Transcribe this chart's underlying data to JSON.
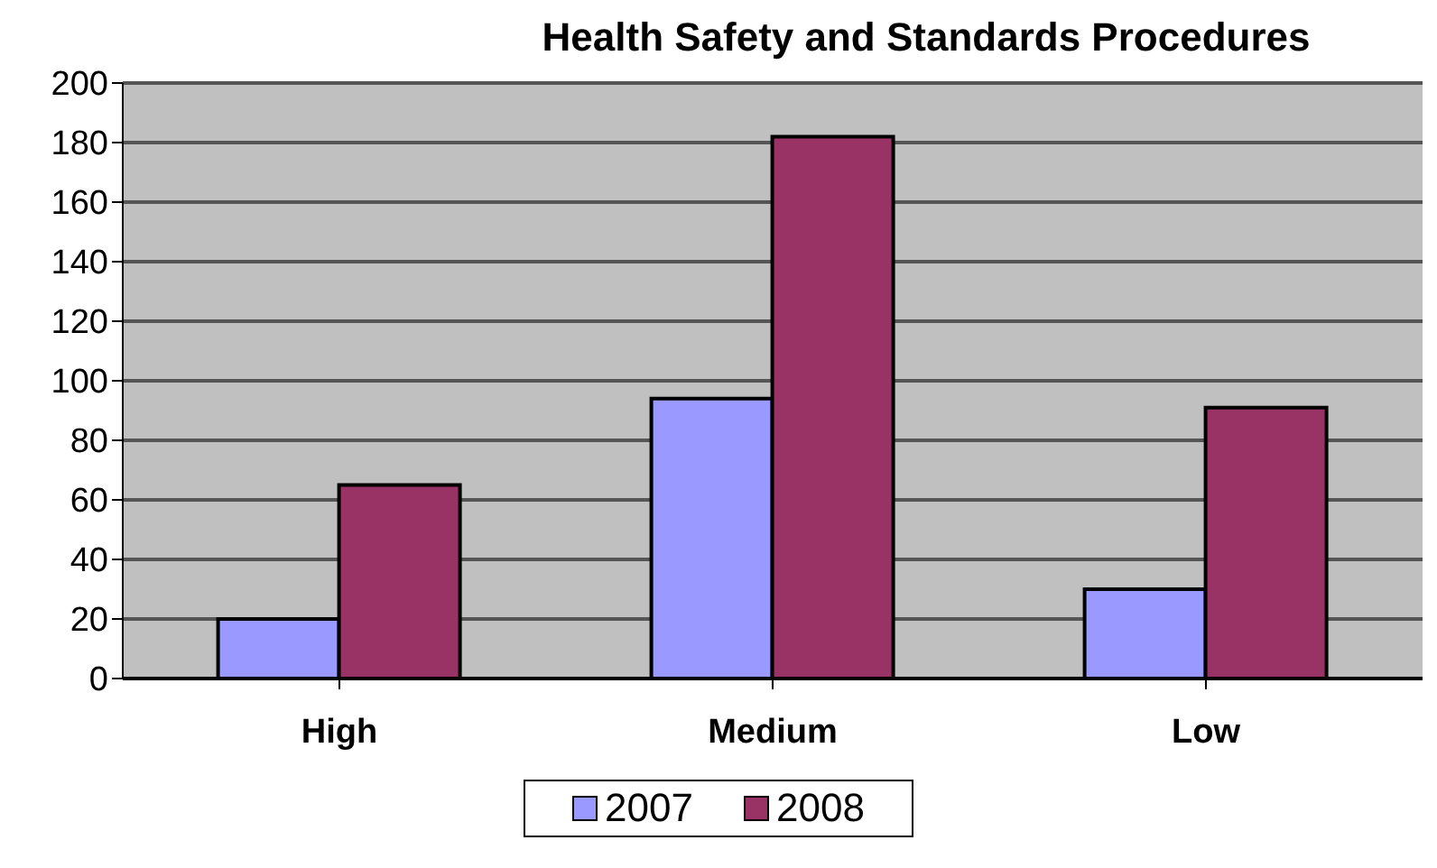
{
  "chart_data": {
    "type": "bar",
    "title": "Health Safety and Standards Procedures",
    "categories": [
      "High",
      "Medium",
      "Low"
    ],
    "series": [
      {
        "name": "2007",
        "color": "#9999ff",
        "values": [
          20,
          94,
          30
        ]
      },
      {
        "name": "2008",
        "color": "#993366",
        "values": [
          65,
          182,
          91
        ]
      }
    ],
    "ylim": [
      0,
      200
    ],
    "yticks": [
      0,
      20,
      40,
      60,
      80,
      100,
      120,
      140,
      160,
      180,
      200
    ],
    "grid": "y",
    "legend": "bottom"
  }
}
